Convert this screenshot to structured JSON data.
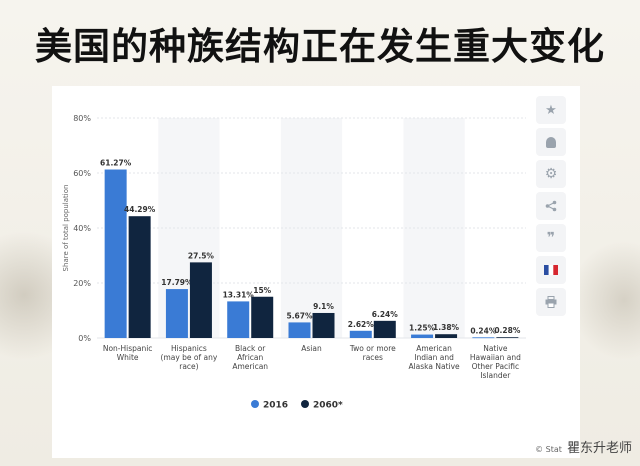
{
  "slide": {
    "title": "美国的种族结构正在发生重大变化"
  },
  "chart_data": {
    "type": "bar",
    "ylabel": "Share of total population",
    "ylim": [
      0,
      80
    ],
    "yticks": [
      "0%",
      "20%",
      "40%",
      "60%",
      "80%"
    ],
    "ytick_values": [
      0,
      20,
      40,
      60,
      80
    ],
    "grid": true,
    "legend_position": "bottom-center",
    "categories": [
      [
        "Non-Hispanic",
        "White"
      ],
      [
        "Hispanics",
        "(may be of any",
        "race)"
      ],
      [
        "Black or",
        "African",
        "American"
      ],
      [
        "Asian"
      ],
      [
        "Two or more",
        "races"
      ],
      [
        "American",
        "Indian and",
        "Alaska Native"
      ],
      [
        "Native",
        "Hawaiian and",
        "Other Pacific",
        "Islander"
      ]
    ],
    "series": [
      {
        "name": "2016",
        "color": "#3a7bd5",
        "values": [
          61.27,
          17.79,
          13.31,
          5.67,
          2.62,
          1.25,
          0.24
        ],
        "labels": [
          "61.27%",
          "17.79%",
          "13.31%",
          "5.67%",
          "2.62%",
          "1.25%",
          "0.24%"
        ]
      },
      {
        "name": "2060*",
        "color": "#10253f",
        "values": [
          44.29,
          27.5,
          15,
          9.1,
          6.24,
          1.38,
          0.28
        ],
        "labels": [
          "44.29%",
          "27.5%",
          "15%",
          "9.1%",
          "6.24%",
          "1.38%",
          "0.28%"
        ]
      }
    ]
  },
  "toolbar": {
    "items": [
      {
        "icon": "star-icon",
        "glyph": "★"
      },
      {
        "icon": "bell-icon",
        "glyph": "🔔"
      },
      {
        "icon": "gear-icon",
        "glyph": "⚙"
      },
      {
        "icon": "share-icon",
        "glyph": "⋖"
      },
      {
        "icon": "quote-icon",
        "glyph": "❞"
      },
      {
        "icon": "flag-icon",
        "glyph": ""
      },
      {
        "icon": "print-icon",
        "glyph": "⎙"
      }
    ]
  },
  "watermark": {
    "source": "© Stat",
    "author": "瞿东升老师"
  }
}
